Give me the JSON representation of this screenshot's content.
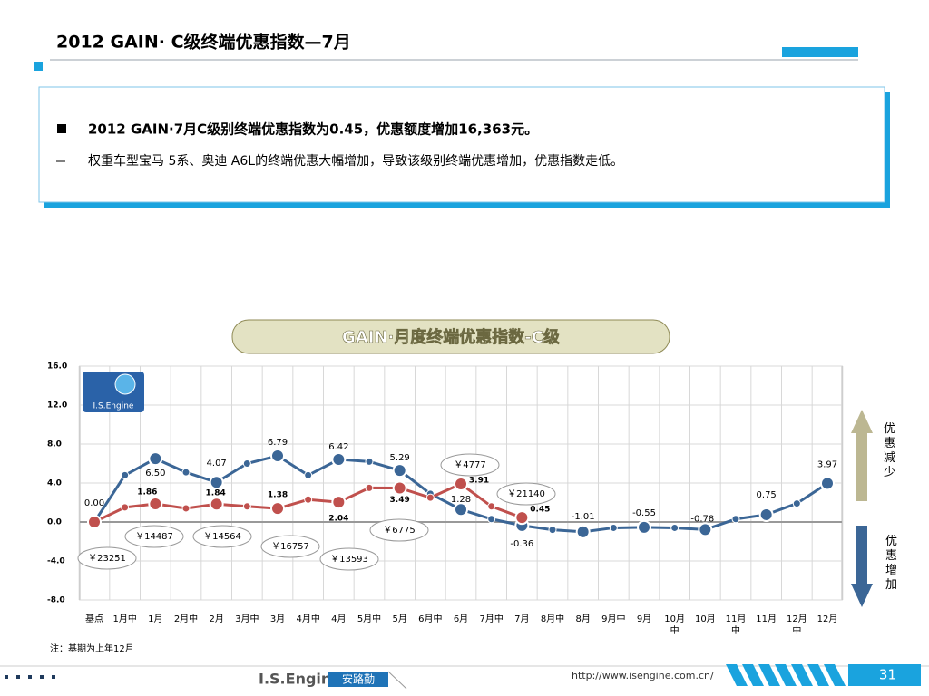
{
  "header": {
    "title": "2012 GAIN· C级终端优惠指数—7月"
  },
  "summary": {
    "bullet": "2012 GAIN·7月C级别终端优惠指数为0.45，优惠额度增加16,363元。",
    "detail": "权重车型宝马 5系、奥迪 A6L的终端优惠大幅增加，导致该级别终端优惠增加，优惠指数走低。"
  },
  "chart_data": {
    "type": "line",
    "title": "GAIN·月度终端优惠指数-C级",
    "logo": "I.S.Engine",
    "categories": [
      "基点",
      "1月中",
      "1月",
      "2月中",
      "2月",
      "3月中",
      "3月",
      "4月中",
      "4月",
      "5月中",
      "5月",
      "6月中",
      "6月",
      "7月中",
      "7月",
      "8月中",
      "8月",
      "9月中",
      "9月",
      "10月中",
      "10月",
      "11月中",
      "11月",
      "12月中",
      "12月"
    ],
    "series": [
      {
        "color": "#3b6696",
        "values": [
          0,
          4.8,
          6.5,
          5.1,
          4.07,
          6.0,
          6.79,
          4.8,
          6.42,
          6.2,
          5.29,
          2.9,
          1.28,
          0.3,
          -0.36,
          -0.8,
          -1.01,
          -0.6,
          -0.55,
          -0.6,
          -0.78,
          0.3,
          0.75,
          1.9,
          3.97
        ],
        "value_labels": [
          "0.00",
          null,
          "6.50",
          null,
          "4.07",
          null,
          "6.79",
          null,
          "6.42",
          null,
          "5.29",
          null,
          "1.28",
          null,
          "-0.36",
          null,
          "-1.01",
          null,
          "-0.55",
          null,
          "-0.78",
          null,
          "0.75",
          null,
          "3.97"
        ]
      },
      {
        "color": "#c0504d",
        "values": [
          0,
          1.5,
          1.86,
          1.4,
          1.84,
          1.6,
          1.38,
          2.3,
          2.04,
          3.5,
          3.49,
          2.5,
          3.91,
          1.6,
          0.45,
          null,
          null,
          null,
          null,
          null,
          null,
          null,
          null,
          null,
          null
        ],
        "value_labels": [
          null,
          null,
          "1.86",
          null,
          "1.84",
          null,
          "1.38",
          null,
          "2.04",
          null,
          "3.49",
          null,
          "3.91",
          null,
          "0.45",
          null,
          null,
          null,
          null,
          null,
          null,
          null,
          null,
          null,
          null
        ]
      }
    ],
    "ylim": [
      -8,
      16
    ],
    "yticks": [
      {
        "value": -8,
        "label": "-8.0"
      },
      {
        "value": -4,
        "label": "-4.0"
      },
      {
        "value": 0,
        "label": "0.0"
      },
      {
        "value": 4,
        "label": "4.0"
      },
      {
        "value": 8,
        "label": "8.0"
      },
      {
        "value": 12,
        "label": "12.0"
      },
      {
        "value": 16,
        "label": "16.0"
      }
    ],
    "grid": true,
    "annotations": [
      "￥23251",
      "￥14487",
      "￥14564",
      "￥16757",
      "￥13593",
      "￥6775",
      "￥4777",
      "￥21140"
    ],
    "arrow_up": "优惠减少",
    "arrow_down": "优惠增加",
    "note": "注：基期为上年12月"
  },
  "footer": {
    "brand": "I.S.Engine",
    "brand_cn": "安路勤",
    "url": "http://www.isengine.com.cn/",
    "page": "31"
  }
}
